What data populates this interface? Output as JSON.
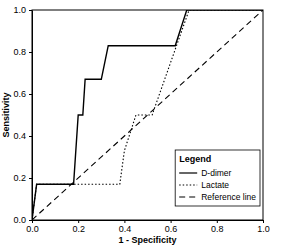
{
  "chart_data": {
    "type": "line",
    "x_label": "1 - Specificity",
    "y_label": "Sensitivity",
    "legend_title": "Legend",
    "legend": "lower right",
    "grid": false,
    "xlim": [
      0,
      1
    ],
    "ylim": [
      0,
      1
    ],
    "xticks": [
      {
        "value": 0,
        "label": "0.0"
      },
      0.2,
      0.4,
      0.6,
      0.8,
      {
        "value": 1,
        "label": "1.0"
      }
    ],
    "yticks": [
      {
        "value": 0,
        "label": "0.0"
      },
      0.2,
      0.4,
      0.6,
      0.8,
      {
        "value": 1,
        "label": "1.0"
      }
    ],
    "series": [
      {
        "name": "D-dimer",
        "color": "#000000",
        "line_style": "solid",
        "x": [
          0,
          0.02,
          0.18,
          0.2,
          0.22,
          0.23,
          0.3,
          0.33,
          0.62,
          0.67,
          1
        ],
        "values": [
          0,
          0.17,
          0.17,
          0.5,
          0.5,
          0.67,
          0.67,
          0.83,
          0.83,
          1,
          1
        ]
      },
      {
        "name": "Lactate",
        "color": "#000000",
        "line_style": "dotted",
        "x": [
          0,
          0.02,
          0.38,
          0.4,
          0.45,
          0.52,
          0.68,
          1
        ],
        "values": [
          0,
          0.17,
          0.17,
          0.33,
          0.5,
          0.5,
          1,
          1
        ]
      },
      {
        "name": "Reference line",
        "color": "#000000",
        "line_style": "dashed",
        "x": [
          0,
          1
        ],
        "values": [
          0,
          1
        ]
      }
    ]
  }
}
